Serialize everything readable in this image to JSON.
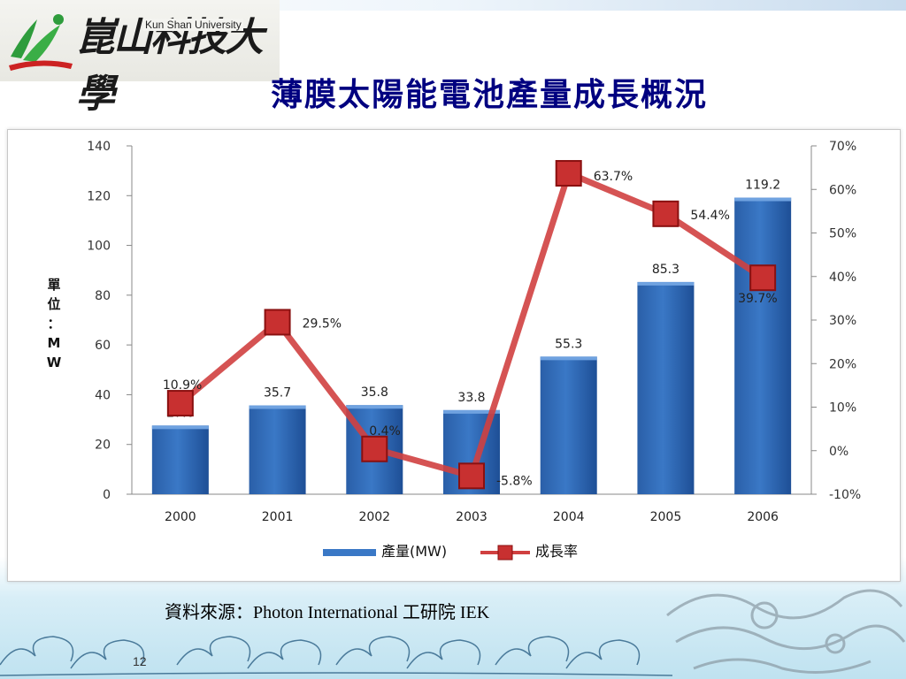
{
  "header": {
    "logo_cn": "崑山科技大學",
    "logo_en": "Kun Shan University",
    "title": "薄膜太陽能電池產量成長概況"
  },
  "footer": {
    "source": "資料來源：Photon International 工研院 IEK",
    "page_number": "12"
  },
  "colors": {
    "bar": "#3a78c6",
    "line": "#d04040",
    "title": "#000080"
  },
  "icons": [
    "logo-mountain-icon",
    "dragon-decoration",
    "wave-decoration"
  ],
  "chart_data": {
    "type": "bar",
    "categories": [
      "2000",
      "2001",
      "2002",
      "2003",
      "2004",
      "2005",
      "2006"
    ],
    "series": [
      {
        "name": "產量(MW)",
        "type": "bar",
        "axis": "left",
        "values": [
          27.6,
          35.7,
          35.8,
          33.8,
          55.3,
          85.3,
          119.2
        ],
        "labels": [
          "27.6",
          "35.7",
          "35.8",
          "33.8",
          "55.3",
          "85.3",
          "119.2"
        ]
      },
      {
        "name": "成長率",
        "type": "line",
        "axis": "right",
        "values": [
          10.9,
          29.5,
          0.4,
          -5.8,
          63.7,
          54.4,
          39.7
        ],
        "labels": [
          "10.9%",
          "29.5%",
          "0.4%",
          "-5.8%",
          "63.7%",
          "54.4%",
          "39.7%"
        ]
      }
    ],
    "ylabel": "單位：MW",
    "ylim": [
      0,
      140
    ],
    "yticks": [
      "0",
      "20",
      "40",
      "60",
      "80",
      "100",
      "120",
      "140"
    ],
    "y2lim": [
      -10,
      70
    ],
    "y2ticks": [
      "-10%",
      "0%",
      "10%",
      "20%",
      "30%",
      "40%",
      "50%",
      "60%",
      "70%"
    ],
    "legend_position": "bottom",
    "grid": false
  }
}
